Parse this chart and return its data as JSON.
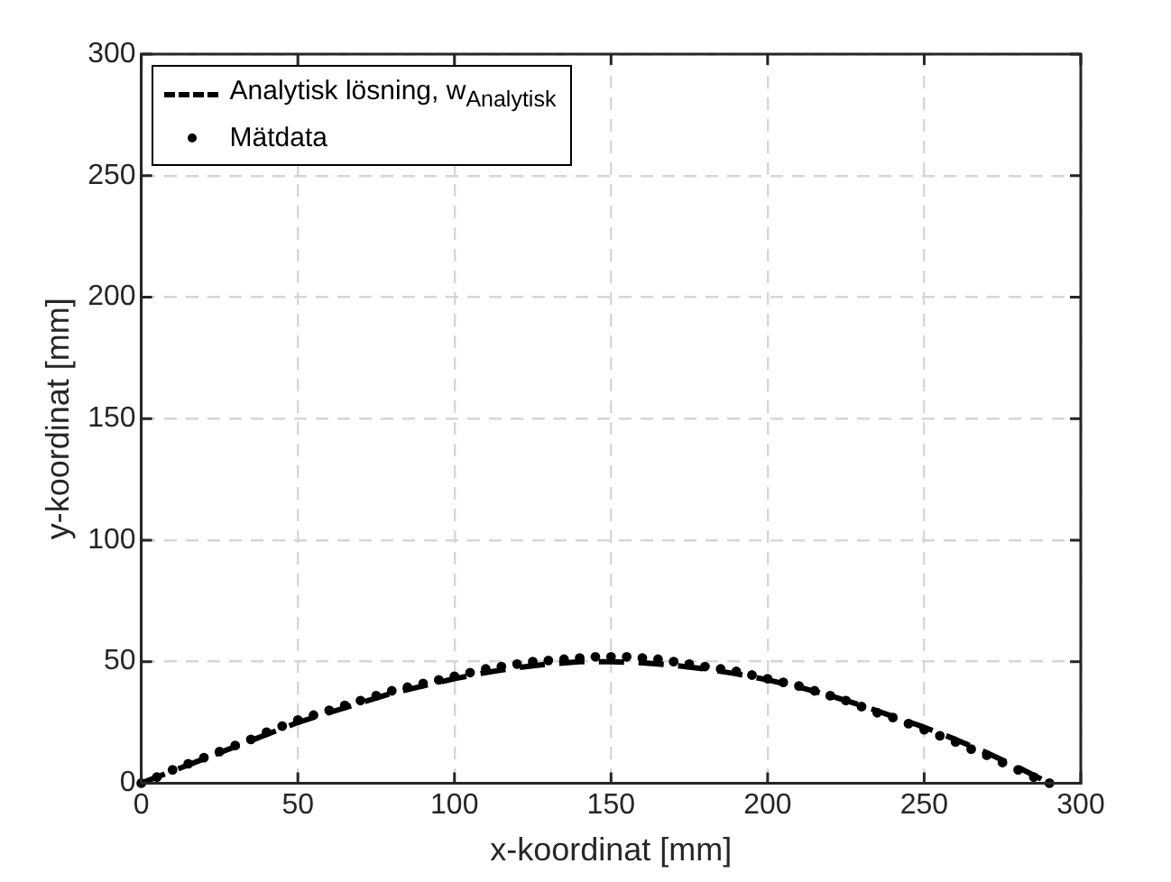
{
  "chart_data": {
    "type": "line",
    "xlabel": "x-koordinat [mm]",
    "ylabel": "y-koordinat [mm]",
    "xlim": [
      0,
      300
    ],
    "xticks": [
      0,
      50,
      100,
      150,
      200,
      250,
      300
    ],
    "ylim": [
      0,
      300
    ],
    "yticks": [
      0,
      50,
      100,
      150,
      200,
      250,
      300
    ],
    "grid": true,
    "legend": "top left",
    "series": [
      {
        "name": "Analytisk lösning, w$_{Analytisk}$",
        "line_style": "dashed",
        "marker": "none",
        "color": "#000000",
        "x": [
          0,
          10,
          20,
          30,
          40,
          50,
          60,
          70,
          80,
          90,
          100,
          110,
          120,
          130,
          140,
          150,
          160,
          170,
          180,
          190,
          200,
          210,
          220,
          230,
          240,
          250,
          260,
          270,
          280,
          290
        ],
        "values": [
          0,
          5,
          10,
          15,
          20,
          25,
          29,
          33,
          37,
          40,
          43,
          45.5,
          47.5,
          49,
          50,
          50,
          49.5,
          48.5,
          47,
          45,
          42.5,
          39.5,
          36,
          32,
          27.5,
          23,
          18,
          12.5,
          6.5,
          0
        ]
      },
      {
        "name": "Mätdata",
        "type": "scatter",
        "marker": "circle",
        "color": "#000000",
        "x": [
          0,
          5,
          10,
          15,
          20,
          25,
          30,
          35,
          40,
          45,
          50,
          55,
          60,
          65,
          70,
          75,
          80,
          85,
          90,
          95,
          100,
          105,
          110,
          115,
          120,
          125,
          130,
          135,
          140,
          145,
          150,
          155,
          160,
          165,
          170,
          175,
          180,
          185,
          190,
          195,
          200,
          205,
          210,
          215,
          220,
          225,
          230,
          235,
          240,
          245,
          250,
          255,
          260,
          265,
          270,
          275,
          280,
          285,
          290
        ],
        "values": [
          0,
          2.5,
          5.5,
          8,
          10.5,
          13,
          15.5,
          18,
          21,
          23.5,
          26,
          28,
          30,
          32,
          34,
          36,
          38,
          39.5,
          41,
          42.5,
          44,
          45.5,
          47,
          48,
          49,
          50,
          50.5,
          51,
          51.5,
          52,
          52,
          52,
          51.5,
          51,
          50,
          49,
          48,
          47,
          46,
          44.5,
          43,
          41.5,
          40,
          38,
          36,
          34,
          31.5,
          29,
          27,
          24.5,
          22,
          19.5,
          17,
          14,
          11.5,
          8.5,
          5.5,
          2.5,
          0
        ]
      }
    ]
  }
}
